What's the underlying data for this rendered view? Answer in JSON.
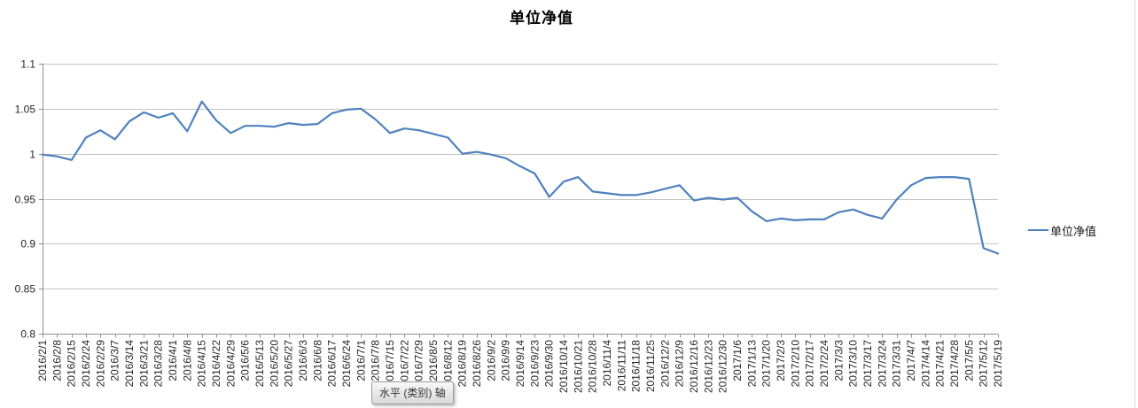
{
  "chart": {
    "title": "单位净值",
    "legend": {
      "label": "单位净值"
    },
    "axis_tooltip": {
      "text": "水平 (类别) 轴"
    }
  },
  "colors": {
    "series_line": "#4F81BD",
    "gridline": "#c3c3c3",
    "axis_line": "#8e8e8e",
    "tick_label": "#262626",
    "chart_border": "#d5d5d5"
  },
  "chart_data": {
    "type": "line",
    "title": "单位净值",
    "xlabel": "",
    "ylabel": "",
    "ylim": [
      0.8,
      1.1
    ],
    "yticks": [
      "0.8",
      "0.85",
      "0.9",
      "0.95",
      "1",
      "1.05",
      "1.1"
    ],
    "grid": true,
    "legend_position": "right",
    "x_tick_label_rotation": -90,
    "categories": [
      "2016/2/1",
      "2016/2/8",
      "2016/2/15",
      "2016/2/24",
      "2016/2/29",
      "2016/3/7",
      "2016/3/14",
      "2016/3/21",
      "2016/3/28",
      "2016/4/1",
      "2016/4/8",
      "2016/4/15",
      "2016/4/22",
      "2016/4/29",
      "2016/5/6",
      "2016/5/13",
      "2016/5/20",
      "2016/5/27",
      "2016/6/3",
      "2016/6/8",
      "2016/6/17",
      "2016/6/24",
      "2016/7/1",
      "2016/7/8",
      "2016/7/15",
      "2016/7/22",
      "2016/7/29",
      "2016/8/5",
      "2016/8/12",
      "2016/8/19",
      "2016/8/26",
      "2016/9/2",
      "2016/9/9",
      "2016/9/14",
      "2016/9/23",
      "2016/9/30",
      "2016/10/14",
      "2016/10/21",
      "2016/10/28",
      "2016/11/4",
      "2016/11/11",
      "2016/11/18",
      "2016/11/25",
      "2016/12/2",
      "2016/12/9",
      "2016/12/16",
      "2016/12/23",
      "2016/12/30",
      "2017/1/6",
      "2017/1/13",
      "2017/1/20",
      "2017/2/3",
      "2017/2/10",
      "2017/2/17",
      "2017/2/24",
      "2017/3/3",
      "2017/3/10",
      "2017/3/17",
      "2017/3/24",
      "2017/3/31",
      "2017/4/7",
      "2017/4/14",
      "2017/4/21",
      "2017/4/28",
      "2017/5/5",
      "2017/5/12",
      "2017/5/19"
    ],
    "series": [
      {
        "name": "单位净值",
        "values": [
          0.999,
          0.997,
          0.993,
          1.018,
          1.026,
          1.016,
          1.036,
          1.046,
          1.04,
          1.045,
          1.025,
          1.058,
          1.037,
          1.023,
          1.031,
          1.031,
          1.03,
          1.034,
          1.032,
          1.033,
          1.045,
          1.049,
          1.05,
          1.038,
          1.023,
          1.028,
          1.026,
          1.022,
          1.018,
          1.0,
          1.002,
          0.999,
          0.995,
          0.986,
          0.978,
          0.952,
          0.969,
          0.974,
          0.958,
          0.956,
          0.954,
          0.954,
          0.957,
          0.961,
          0.965,
          0.948,
          0.951,
          0.949,
          0.951,
          0.936,
          0.925,
          0.928,
          0.926,
          0.927,
          0.927,
          0.935,
          0.938,
          0.932,
          0.928,
          0.949,
          0.965,
          0.973,
          0.974,
          0.974,
          0.972,
          0.895,
          0.889
        ]
      }
    ]
  }
}
